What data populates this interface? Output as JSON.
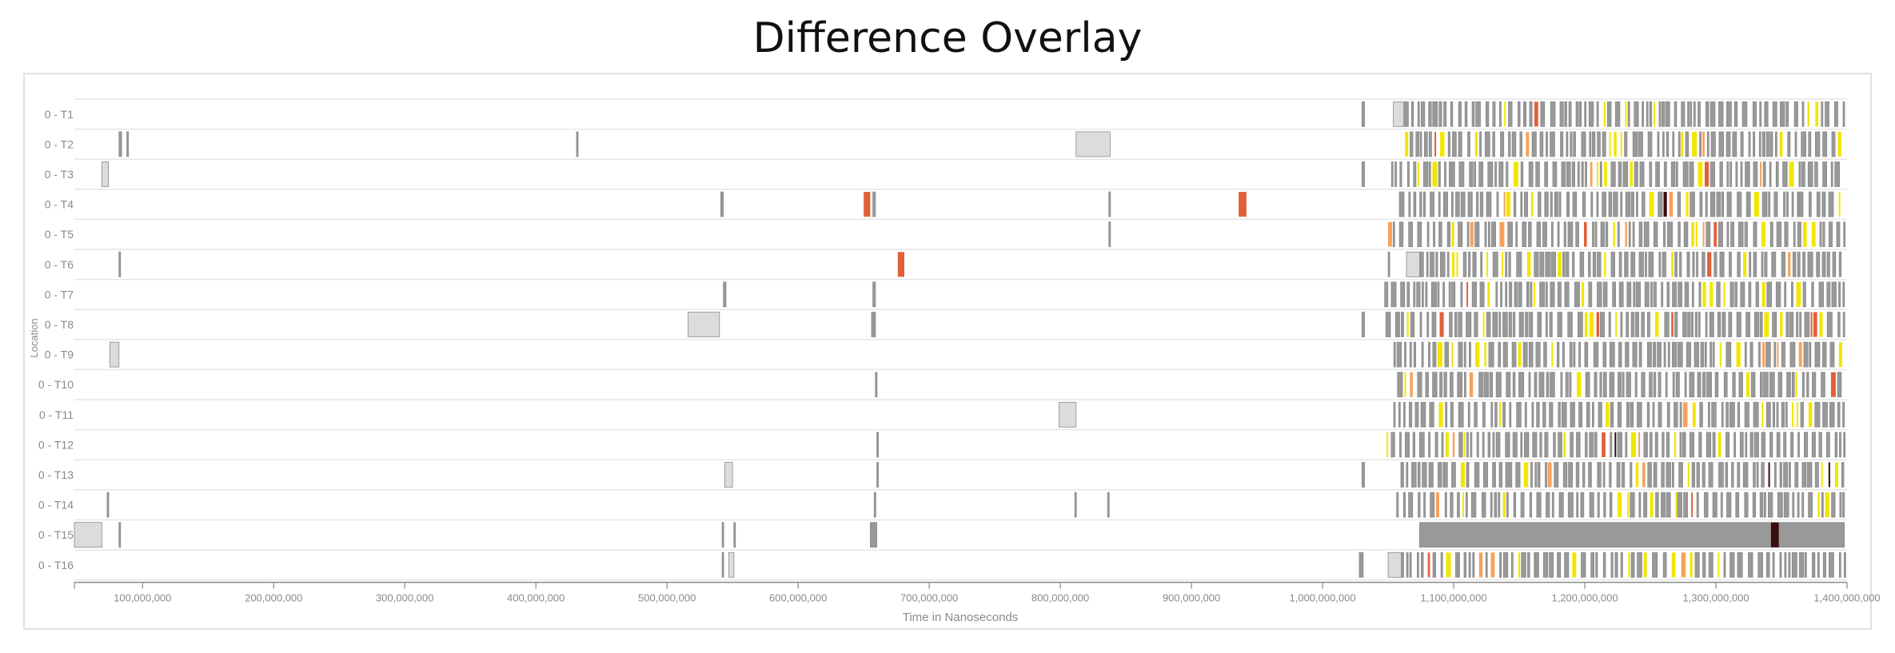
{
  "chart_data": {
    "type": "timeline",
    "title": "Difference Overlay",
    "xlabel": "Time in Nanoseconds",
    "ylabel": "Location",
    "xlim": [
      48000000,
      1400000000
    ],
    "x_ticks": [
      100000000,
      200000000,
      300000000,
      400000000,
      500000000,
      600000000,
      700000000,
      800000000,
      900000000,
      1000000000,
      1100000000,
      1200000000,
      1300000000,
      1400000000
    ],
    "x_tick_labels": [
      "100,000,000",
      "200,000,000",
      "300,000,000",
      "400,000,000",
      "500,000,000",
      "600,000,000",
      "700,000,000",
      "800,000,000",
      "900,000,000",
      "1,000,000,000",
      "1,100,000,000",
      "1,200,000,000",
      "1,300,000,000",
      "1,400,000,000"
    ],
    "rows": [
      "0 - T1",
      "0 - T2",
      "0 - T3",
      "0 - T4",
      "0 - T5",
      "0 - T6",
      "0 - T7",
      "0 - T8",
      "0 - T9",
      "0 - T10",
      "0 - T11",
      "0 - T12",
      "0 - T13",
      "0 - T14",
      "0 - T15",
      "0 - T16"
    ],
    "colors": {
      "dense": "#999999",
      "sparse": "#dcdcdc",
      "diff_low": "#f2e600",
      "diff_mid": "#f5a25a",
      "diff_high": "#e0603a",
      "diff_max": "#3a0c0c"
    },
    "sparse_events": [
      {
        "row": 0,
        "start": 1030000000,
        "end": 1032000000,
        "level": "dense"
      },
      {
        "row": 0,
        "start": 1054000000,
        "end": 1062000000,
        "level": "light"
      },
      {
        "row": 1,
        "start": 82000000,
        "end": 84000000,
        "level": "dense"
      },
      {
        "row": 1,
        "start": 88000000,
        "end": 89000000,
        "level": "dense"
      },
      {
        "row": 1,
        "start": 431000000,
        "end": 432000000,
        "level": "dense"
      },
      {
        "row": 1,
        "start": 812000000,
        "end": 838000000,
        "level": "light"
      },
      {
        "row": 2,
        "start": 69000000,
        "end": 74000000,
        "level": "light"
      },
      {
        "row": 2,
        "start": 1030000000,
        "end": 1032000000,
        "level": "dense"
      },
      {
        "row": 3,
        "start": 541000000,
        "end": 543000000,
        "level": "dense"
      },
      {
        "row": 3,
        "start": 650000000,
        "end": 655000000,
        "level": "diff_high"
      },
      {
        "row": 3,
        "start": 657000000,
        "end": 659000000,
        "level": "dense"
      },
      {
        "row": 3,
        "start": 837000000,
        "end": 838000000,
        "level": "dense"
      },
      {
        "row": 3,
        "start": 936000000,
        "end": 942000000,
        "level": "diff_high"
      },
      {
        "row": 4,
        "start": 837000000,
        "end": 838000000,
        "level": "dense"
      },
      {
        "row": 5,
        "start": 82000000,
        "end": 83000000,
        "level": "dense"
      },
      {
        "row": 5,
        "start": 676000000,
        "end": 681000000,
        "level": "diff_high"
      },
      {
        "row": 5,
        "start": 1050000000,
        "end": 1051000000,
        "level": "dense"
      },
      {
        "row": 5,
        "start": 1064000000,
        "end": 1074000000,
        "level": "light"
      },
      {
        "row": 6,
        "start": 543000000,
        "end": 545000000,
        "level": "dense"
      },
      {
        "row": 6,
        "start": 657000000,
        "end": 659000000,
        "level": "dense"
      },
      {
        "row": 7,
        "start": 516000000,
        "end": 540000000,
        "level": "light"
      },
      {
        "row": 7,
        "start": 656000000,
        "end": 659000000,
        "level": "dense"
      },
      {
        "row": 7,
        "start": 1030000000,
        "end": 1032000000,
        "level": "dense"
      },
      {
        "row": 8,
        "start": 75000000,
        "end": 82000000,
        "level": "light"
      },
      {
        "row": 9,
        "start": 659000000,
        "end": 660000000,
        "level": "dense"
      },
      {
        "row": 10,
        "start": 799000000,
        "end": 812000000,
        "level": "light"
      },
      {
        "row": 11,
        "start": 660000000,
        "end": 661000000,
        "level": "dense"
      },
      {
        "row": 12,
        "start": 544000000,
        "end": 550000000,
        "level": "light"
      },
      {
        "row": 12,
        "start": 660000000,
        "end": 661000000,
        "level": "dense"
      },
      {
        "row": 12,
        "start": 1030000000,
        "end": 1032000000,
        "level": "dense"
      },
      {
        "row": 13,
        "start": 73000000,
        "end": 74000000,
        "level": "dense"
      },
      {
        "row": 13,
        "start": 658000000,
        "end": 659000000,
        "level": "dense"
      },
      {
        "row": 13,
        "start": 811000000,
        "end": 812000000,
        "level": "dense"
      },
      {
        "row": 13,
        "start": 836000000,
        "end": 837000000,
        "level": "dense"
      },
      {
        "row": 14,
        "start": 48000000,
        "end": 69000000,
        "level": "light"
      },
      {
        "row": 14,
        "start": 82000000,
        "end": 83000000,
        "level": "dense"
      },
      {
        "row": 14,
        "start": 542000000,
        "end": 543000000,
        "level": "dense"
      },
      {
        "row": 14,
        "start": 551000000,
        "end": 552000000,
        "level": "dense"
      },
      {
        "row": 14,
        "start": 655000000,
        "end": 660000000,
        "level": "dense"
      },
      {
        "row": 14,
        "start": 1074000000,
        "end": 1398000000,
        "level": "dense"
      },
      {
        "row": 14,
        "start": 1342000000,
        "end": 1348000000,
        "level": "diff_max"
      },
      {
        "row": 15,
        "start": 542000000,
        "end": 543000000,
        "level": "dense"
      },
      {
        "row": 15,
        "start": 547000000,
        "end": 551000000,
        "level": "light"
      },
      {
        "row": 15,
        "start": 1028000000,
        "end": 1031000000,
        "level": "dense"
      },
      {
        "row": 15,
        "start": 1050000000,
        "end": 1060000000,
        "level": "light"
      }
    ],
    "dense_region": {
      "start": 1045000000,
      "end": 1398000000
    },
    "grid": false,
    "legend": "none"
  }
}
